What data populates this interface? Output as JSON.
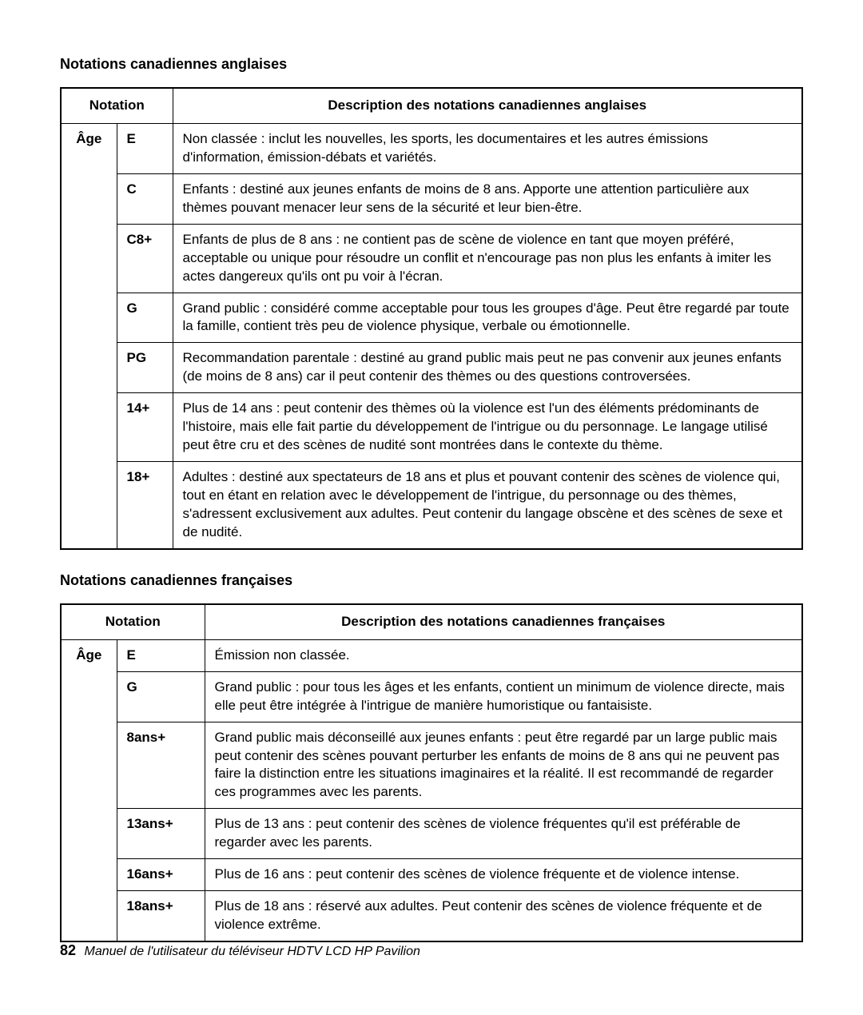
{
  "section1": {
    "title": "Notations canadiennes anglaises",
    "header_notation": "Notation",
    "header_desc": "Description des notations canadiennes anglaises",
    "age_label": "Âge",
    "rows": [
      {
        "code": "E",
        "desc": "Non classée : inclut les nouvelles, les sports, les documentaires et les autres émissions d'information, émission-débats et variétés."
      },
      {
        "code": "C",
        "desc": "Enfants : destiné aux jeunes enfants de moins de 8 ans. Apporte une attention particulière aux thèmes pouvant menacer leur sens de la sécurité et leur bien-être."
      },
      {
        "code": "C8+",
        "desc": "Enfants de plus de 8 ans : ne contient pas de scène de violence en tant que moyen préféré, acceptable ou unique pour résoudre un conflit et n'encourage pas non plus les enfants à imiter les actes dangereux qu'ils ont pu voir à l'écran."
      },
      {
        "code": "G",
        "desc": "Grand public : considéré comme acceptable pour tous les groupes d'âge. Peut être regardé par toute la famille, contient très peu de violence physique, verbale ou émotionnelle."
      },
      {
        "code": "PG",
        "desc": "Recommandation parentale : destiné au grand public mais peut ne pas convenir aux jeunes enfants (de moins de 8 ans) car il peut contenir des thèmes ou des questions controversées."
      },
      {
        "code": "14+",
        "desc": "Plus de 14 ans : peut contenir des thèmes où la violence est l'un des éléments prédominants de l'histoire, mais elle fait partie du développement de l'intrigue ou du personnage. Le langage utilisé peut être cru et des scènes de nudité sont montrées dans le contexte du thème."
      },
      {
        "code": "18+",
        "desc": "Adultes : destiné aux spectateurs de 18 ans et plus et pouvant contenir des scènes de violence qui, tout en étant en relation avec le développement de l'intrigue, du personnage ou des thèmes, s'adressent exclusivement aux adultes. Peut contenir du langage obscène et des scènes de sexe et de nudité."
      }
    ]
  },
  "section2": {
    "title": "Notations canadiennes françaises",
    "header_notation": "Notation",
    "header_desc": "Description des notations canadiennes françaises",
    "age_label": "Âge",
    "rows": [
      {
        "code": "E",
        "desc": "Émission non classée."
      },
      {
        "code": "G",
        "desc": "Grand public : pour tous les âges et les enfants, contient un minimum de violence directe, mais elle peut être intégrée à l'intrigue de manière humoristique ou fantaisiste."
      },
      {
        "code": "8ans+",
        "desc": "Grand public mais déconseillé aux jeunes enfants : peut être regardé par un large public mais peut contenir des scènes pouvant perturber les enfants de moins de 8 ans qui ne peuvent pas faire la distinction entre les situations imaginaires et la réalité. Il est recommandé de regarder ces programmes avec les parents."
      },
      {
        "code": "13ans+",
        "desc": "Plus de 13 ans : peut contenir des scènes de violence fréquentes qu'il est préférable de regarder avec les parents."
      },
      {
        "code": "16ans+",
        "desc": "Plus de 16 ans : peut contenir des scènes de violence fréquente et de violence intense."
      },
      {
        "code": "18ans+",
        "desc": "Plus de 18 ans : réservé aux adultes. Peut contenir des scènes de violence fréquente et de violence extrême."
      }
    ]
  },
  "footer": {
    "page_number": "82",
    "doc_title": "Manuel de l'utilisateur du téléviseur HDTV LCD HP Pavilion"
  }
}
